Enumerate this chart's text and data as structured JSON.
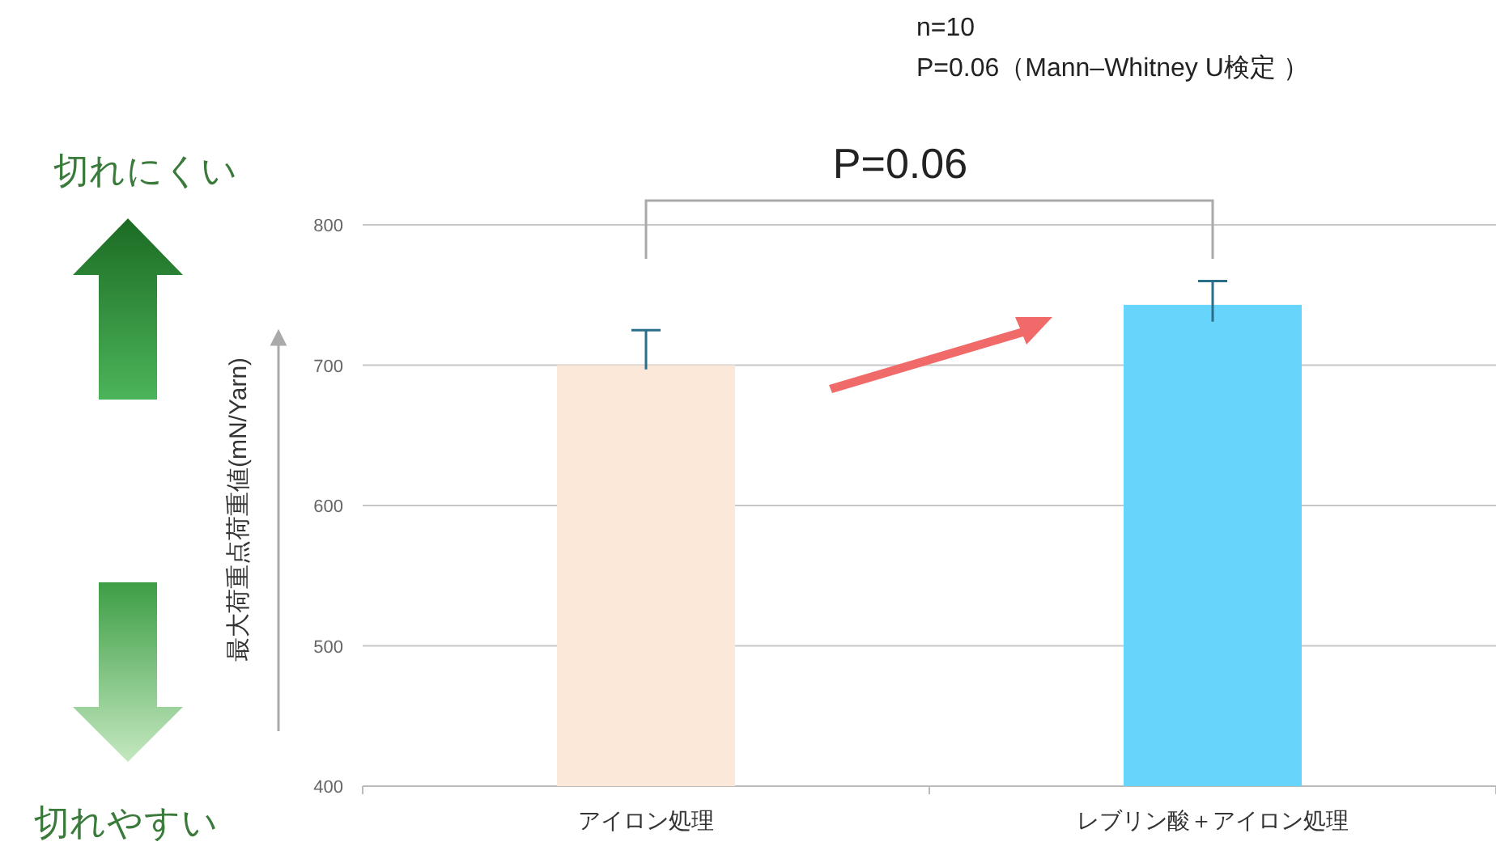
{
  "chart_data": {
    "type": "bar",
    "categories": [
      "アイロン処理",
      "レブリン酸＋アイロン処理"
    ],
    "values": [
      700,
      743
    ],
    "colors": [
      "#fce8d8",
      "#66d4fb"
    ],
    "errors": [
      [
        697,
        725
      ],
      [
        731,
        760
      ]
    ],
    "ylim": [
      400,
      800
    ],
    "yticks": [
      400,
      500,
      600,
      700,
      800
    ],
    "grid": "y",
    "ylabel": "最大荷重点荷重値(mN/Yarn)",
    "annotations": [
      "n=10",
      "P=0.06（Mann–Whitney U検定 ）",
      "P=0.06",
      "切れにくい",
      "切れやすい"
    ]
  }
}
